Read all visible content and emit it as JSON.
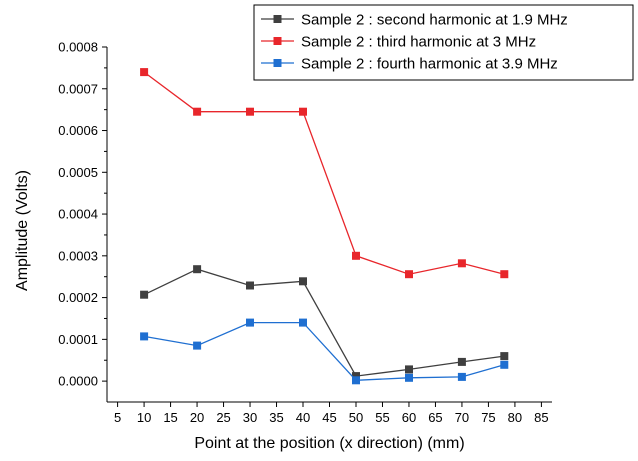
{
  "chart_data": {
    "type": "line",
    "title": "",
    "xlabel": "Point at the position (x direction) (mm)",
    "ylabel": "Amplitude (Volts)",
    "xlim": [
      3,
      87
    ],
    "ylim": [
      -5e-05,
      0.0008
    ],
    "x_ticks": [
      5,
      10,
      15,
      20,
      25,
      30,
      35,
      40,
      45,
      50,
      55,
      60,
      65,
      70,
      75,
      80,
      85
    ],
    "y_ticks": [
      0,
      0.0001,
      0.0002,
      0.0003,
      0.0004,
      0.0005,
      0.0006,
      0.0007,
      0.0008
    ],
    "y_tick_labels": [
      "0.0000",
      "0.0001",
      "0.0002",
      "0.0003",
      "0.0004",
      "0.0005",
      "0.0006",
      "0.0007",
      "0.0008"
    ],
    "grid": false,
    "legend_position": "top-right",
    "series": [
      {
        "name": "Sample 2 : second harmonic at 1.9 MHz",
        "color": "#3f3f3f",
        "x": [
          10,
          20,
          30,
          40,
          50,
          60,
          70,
          78
        ],
        "y": [
          0.000207,
          0.000268,
          0.000229,
          0.000239,
          1.2e-05,
          2.8e-05,
          4.6e-05,
          6e-05
        ]
      },
      {
        "name": "Sample 2 : third harmonic at 3 MHz",
        "color": "#e8262b",
        "x": [
          10,
          20,
          30,
          40,
          50,
          60,
          70,
          78
        ],
        "y": [
          0.00074,
          0.000645,
          0.000645,
          0.000645,
          0.0003,
          0.000256,
          0.000282,
          0.000256
        ]
      },
      {
        "name": "Sample 2 : fourth harmonic at 3.9 MHz",
        "color": "#1f6fd1",
        "x": [
          10,
          20,
          30,
          40,
          50,
          60,
          70,
          78
        ],
        "y": [
          0.000107,
          8.5e-05,
          0.00014,
          0.00014,
          2e-06,
          8e-06,
          1e-05,
          3.9e-05
        ]
      }
    ]
  }
}
